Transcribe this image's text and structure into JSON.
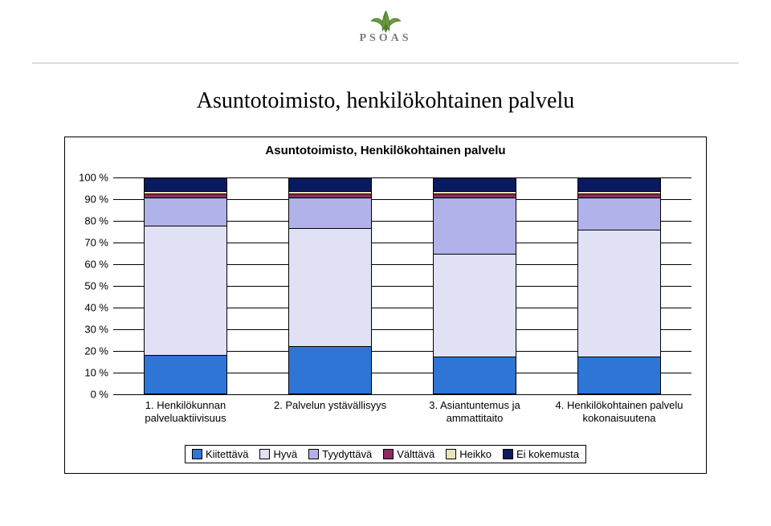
{
  "logo": {
    "text": "PSOAS",
    "leaf_fill": "#6a9e3f",
    "leaf_stroke": "#4d7a2c",
    "text_color": "#7a7a7a"
  },
  "main_title": "Asuntotoimisto, henkilökohtainen palvelu",
  "chart": {
    "type": "bar-stacked-100",
    "title": "Asuntotoimisto, Henkilökohtainen palvelu",
    "title_bold": true,
    "background": "#ffffff",
    "grid_color": "#000000",
    "ylim": [
      0,
      100
    ],
    "ytick_step": 10,
    "ytick_labels": [
      "0 %",
      "10 %",
      "20 %",
      "30 %",
      "40 %",
      "50 %",
      "60 %",
      "70 %",
      "80 %",
      "90 %",
      "100 %"
    ],
    "bar_width_pct": 58,
    "categories": [
      "1. Henkilökunnan palveluaktiivisuus",
      "2. Palvelun ystävällisyys",
      "3. Asiantuntemus ja ammattitaito",
      "4. Henkilökohtainen palvelu kokonaisuutena"
    ],
    "series": [
      {
        "name": "Kiitettävä",
        "color": "#2e75d6"
      },
      {
        "name": "Hyvä",
        "color": "#e1e1f5"
      },
      {
        "name": "Tyydyttävä",
        "color": "#b2b2ea"
      },
      {
        "name": "Välttävä",
        "color": "#8f2a60"
      },
      {
        "name": "Heikko",
        "color": "#e6e6b8"
      },
      {
        "name": "Ei kokemusta",
        "color": "#0a1a5e"
      }
    ],
    "values": [
      [
        18,
        60,
        13,
        2,
        1,
        6
      ],
      [
        22,
        55,
        14,
        2,
        1,
        6
      ],
      [
        17,
        48,
        26,
        2,
        1,
        6
      ],
      [
        17,
        59,
        15,
        2,
        1,
        6
      ]
    ],
    "label_fontsize": 13,
    "title_fontsize": 15
  }
}
